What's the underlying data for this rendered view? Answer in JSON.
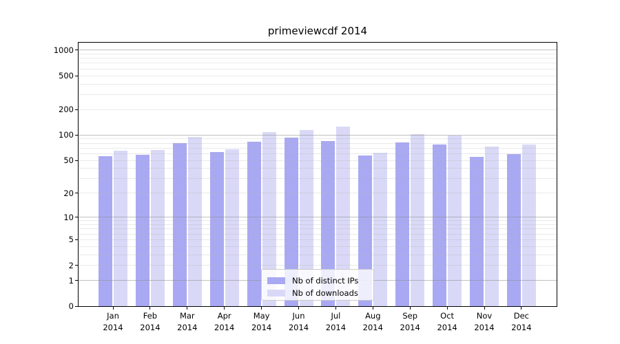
{
  "chart_data": {
    "type": "bar",
    "title": "primeviewcdf 2014",
    "categories": [
      "Jan",
      "Feb",
      "Mar",
      "Apr",
      "May",
      "Jun",
      "Jul",
      "Aug",
      "Sep",
      "Oct",
      "Nov",
      "Dec"
    ],
    "year": "2014",
    "series": [
      {
        "name": "Nb of distinct IPs",
        "color": "#a9a9f3",
        "values": [
          56,
          58,
          80,
          63,
          84,
          93,
          85,
          57,
          82,
          77,
          55,
          59
        ]
      },
      {
        "name": "Nb of downloads",
        "color": "#d9d9f7",
        "values": [
          65,
          66,
          95,
          68,
          108,
          115,
          126,
          62,
          102,
          99,
          73,
          78
        ]
      }
    ],
    "yticks": [
      0,
      1,
      2,
      5,
      10,
      20,
      50,
      100,
      200,
      500,
      1000
    ],
    "ylim": [
      0,
      1220
    ],
    "yscale": "log10(value+1)",
    "grid": "on",
    "legend_position": "lower center"
  }
}
